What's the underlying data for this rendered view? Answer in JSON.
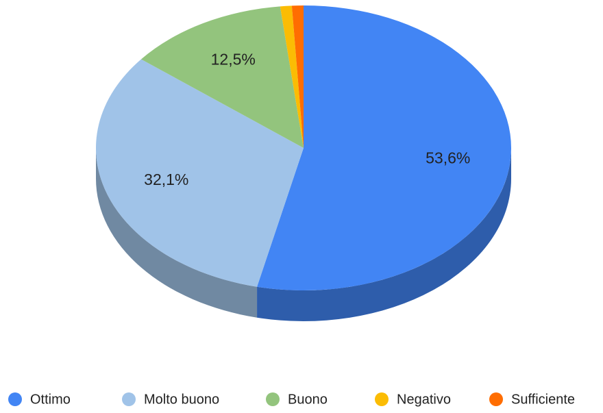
{
  "chart_data": {
    "type": "pie",
    "three_d": true,
    "categories": [
      "Ottimo",
      "Molto buono",
      "Buono",
      "Negativo",
      "Sufficiente"
    ],
    "values": [
      53.6,
      32.1,
      12.5,
      0.9,
      0.9
    ],
    "value_labels": [
      "53,6%",
      "32,1%",
      "12,5%",
      null,
      null
    ],
    "colors": [
      "#4285f4",
      "#a0c3e8",
      "#93c47d",
      "#fbbc04",
      "#ff6d01"
    ],
    "legend": "bottom"
  }
}
